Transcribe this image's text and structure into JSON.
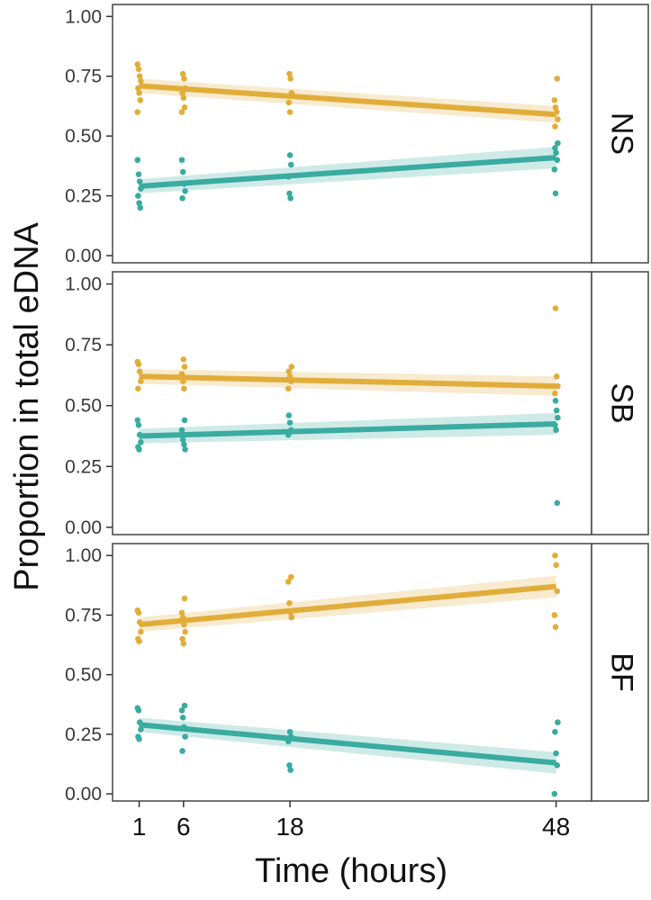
{
  "chart_data": {
    "type": "scatter",
    "xlabel": "Time (hours)",
    "ylabel": "Proportion in total eDNA",
    "x_ticks": [
      1,
      6,
      18,
      48
    ],
    "xlim": [
      -2,
      52
    ],
    "ylim": [
      -0.03,
      1.05
    ],
    "y_ticks": [
      "0.00",
      "0.25",
      "0.50",
      "0.75",
      "1.00"
    ],
    "colors": {
      "orange": "#E1AD3A",
      "teal": "#3AABA0"
    },
    "legend": "none",
    "panels": [
      {
        "label": "NS",
        "series": [
          {
            "color": "orange",
            "fit": {
              "x": [
                1,
                48
              ],
              "y": [
                0.71,
                0.59
              ]
            },
            "ribbon": [
              0.03,
              0.035
            ],
            "points": [
              [
                1,
                0.8
              ],
              [
                1,
                0.78
              ],
              [
                1,
                0.75
              ],
              [
                1,
                0.73
              ],
              [
                1,
                0.7
              ],
              [
                1,
                0.68
              ],
              [
                1,
                0.65
              ],
              [
                1,
                0.6
              ],
              [
                6,
                0.76
              ],
              [
                6,
                0.74
              ],
              [
                6,
                0.7
              ],
              [
                6,
                0.68
              ],
              [
                6,
                0.66
              ],
              [
                6,
                0.62
              ],
              [
                6,
                0.6
              ],
              [
                18,
                0.76
              ],
              [
                18,
                0.74
              ],
              [
                18,
                0.68
              ],
              [
                18,
                0.64
              ],
              [
                18,
                0.6
              ],
              [
                48,
                0.74
              ],
              [
                48,
                0.65
              ],
              [
                48,
                0.62
              ],
              [
                48,
                0.6
              ],
              [
                48,
                0.57
              ],
              [
                48,
                0.54
              ]
            ]
          },
          {
            "color": "teal",
            "fit": {
              "x": [
                1,
                48
              ],
              "y": [
                0.29,
                0.41
              ]
            },
            "ribbon": [
              0.03,
              0.045
            ],
            "points": [
              [
                1,
                0.4
              ],
              [
                1,
                0.34
              ],
              [
                1,
                0.31
              ],
              [
                1,
                0.28
              ],
              [
                1,
                0.25
              ],
              [
                1,
                0.22
              ],
              [
                1,
                0.2
              ],
              [
                6,
                0.4
              ],
              [
                6,
                0.35
              ],
              [
                6,
                0.3
              ],
              [
                6,
                0.27
              ],
              [
                6,
                0.24
              ],
              [
                18,
                0.42
              ],
              [
                18,
                0.38
              ],
              [
                18,
                0.33
              ],
              [
                18,
                0.26
              ],
              [
                18,
                0.24
              ],
              [
                48,
                0.47
              ],
              [
                48,
                0.45
              ],
              [
                48,
                0.43
              ],
              [
                48,
                0.4
              ],
              [
                48,
                0.36
              ],
              [
                48,
                0.26
              ]
            ]
          }
        ]
      },
      {
        "label": "SB",
        "series": [
          {
            "color": "orange",
            "fit": {
              "x": [
                1,
                48
              ],
              "y": [
                0.62,
                0.58
              ]
            },
            "ribbon": [
              0.03,
              0.04
            ],
            "points": [
              [
                1,
                0.68
              ],
              [
                1,
                0.67
              ],
              [
                1,
                0.64
              ],
              [
                1,
                0.6
              ],
              [
                1,
                0.57
              ],
              [
                6,
                0.69
              ],
              [
                6,
                0.66
              ],
              [
                6,
                0.63
              ],
              [
                6,
                0.6
              ],
              [
                6,
                0.57
              ],
              [
                18,
                0.66
              ],
              [
                18,
                0.64
              ],
              [
                18,
                0.62
              ],
              [
                18,
                0.6
              ],
              [
                18,
                0.57
              ],
              [
                48,
                0.9
              ],
              [
                48,
                0.62
              ],
              [
                48,
                0.58
              ],
              [
                48,
                0.55
              ]
            ]
          },
          {
            "color": "teal",
            "fit": {
              "x": [
                1,
                48
              ],
              "y": [
                0.375,
                0.425
              ]
            },
            "ribbon": [
              0.03,
              0.045
            ],
            "points": [
              [
                1,
                0.44
              ],
              [
                1,
                0.42
              ],
              [
                1,
                0.38
              ],
              [
                1,
                0.35
              ],
              [
                1,
                0.33
              ],
              [
                1,
                0.32
              ],
              [
                6,
                0.44
              ],
              [
                6,
                0.4
              ],
              [
                6,
                0.36
              ],
              [
                6,
                0.34
              ],
              [
                6,
                0.32
              ],
              [
                18,
                0.46
              ],
              [
                18,
                0.43
              ],
              [
                18,
                0.4
              ],
              [
                18,
                0.38
              ],
              [
                48,
                0.52
              ],
              [
                48,
                0.48
              ],
              [
                48,
                0.45
              ],
              [
                48,
                0.42
              ],
              [
                48,
                0.4
              ],
              [
                48,
                0.1
              ]
            ]
          }
        ]
      },
      {
        "label": "BF",
        "series": [
          {
            "color": "orange",
            "fit": {
              "x": [
                1,
                48
              ],
              "y": [
                0.71,
                0.87
              ]
            },
            "ribbon": [
              0.03,
              0.045
            ],
            "points": [
              [
                1,
                0.77
              ],
              [
                1,
                0.76
              ],
              [
                1,
                0.72
              ],
              [
                1,
                0.68
              ],
              [
                1,
                0.65
              ],
              [
                1,
                0.64
              ],
              [
                6,
                0.82
              ],
              [
                6,
                0.76
              ],
              [
                6,
                0.74
              ],
              [
                6,
                0.71
              ],
              [
                6,
                0.68
              ],
              [
                6,
                0.65
              ],
              [
                6,
                0.63
              ],
              [
                18,
                0.91
              ],
              [
                18,
                0.89
              ],
              [
                18,
                0.8
              ],
              [
                18,
                0.76
              ],
              [
                18,
                0.74
              ],
              [
                48,
                1.0
              ],
              [
                48,
                0.96
              ],
              [
                48,
                0.85
              ],
              [
                48,
                0.75
              ],
              [
                48,
                0.7
              ]
            ]
          },
          {
            "color": "teal",
            "fit": {
              "x": [
                1,
                48
              ],
              "y": [
                0.29,
                0.13
              ]
            },
            "ribbon": [
              0.03,
              0.045
            ],
            "points": [
              [
                1,
                0.36
              ],
              [
                1,
                0.35
              ],
              [
                1,
                0.3
              ],
              [
                1,
                0.27
              ],
              [
                1,
                0.24
              ],
              [
                1,
                0.23
              ],
              [
                6,
                0.37
              ],
              [
                6,
                0.35
              ],
              [
                6,
                0.32
              ],
              [
                6,
                0.28
              ],
              [
                6,
                0.24
              ],
              [
                6,
                0.18
              ],
              [
                18,
                0.26
              ],
              [
                18,
                0.24
              ],
              [
                18,
                0.22
              ],
              [
                18,
                0.12
              ],
              [
                18,
                0.1
              ],
              [
                48,
                0.3
              ],
              [
                48,
                0.26
              ],
              [
                48,
                0.17
              ],
              [
                48,
                0.12
              ],
              [
                48,
                0.0
              ]
            ]
          }
        ]
      }
    ]
  }
}
